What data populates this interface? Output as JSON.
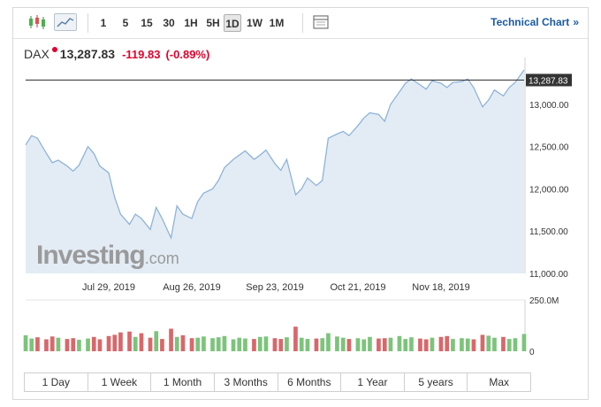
{
  "toolbar": {
    "timeframes": [
      "1",
      "5",
      "15",
      "30",
      "1H",
      "5H",
      "1D",
      "1W",
      "1M"
    ],
    "active_timeframe": "1D",
    "technical_chart_label": "Technical Chart",
    "technical_chart_arrow": "»"
  },
  "quote": {
    "symbol": "DAX",
    "price": "13,287.83",
    "change": "-119.83",
    "change_percent": "(-0.89%)",
    "negative_color": "#e4002b"
  },
  "watermark": {
    "brand": "Investing",
    "suffix": ".com"
  },
  "periods": [
    "1 Day",
    "1 Week",
    "1 Month",
    "3 Months",
    "6 Months",
    "1 Year",
    "5 years",
    "Max"
  ],
  "colors": {
    "line": "#8fb3d8",
    "fill": "#e3ecf5",
    "volume_up": "#7cc47b",
    "volume_down": "#d9676b",
    "marker_line": "#333333"
  },
  "chart_data": {
    "type": "area",
    "x": [
      "2019-07-01",
      "2019-07-03",
      "2019-07-05",
      "2019-07-08",
      "2019-07-10",
      "2019-07-12",
      "2019-07-15",
      "2019-07-17",
      "2019-07-19",
      "2019-07-22",
      "2019-07-24",
      "2019-07-26",
      "2019-07-29",
      "2019-07-31",
      "2019-08-02",
      "2019-08-05",
      "2019-08-07",
      "2019-08-09",
      "2019-08-12",
      "2019-08-14",
      "2019-08-16",
      "2019-08-19",
      "2019-08-21",
      "2019-08-23",
      "2019-08-26",
      "2019-08-28",
      "2019-08-30",
      "2019-09-02",
      "2019-09-04",
      "2019-09-06",
      "2019-09-09",
      "2019-09-11",
      "2019-09-13",
      "2019-09-16",
      "2019-09-18",
      "2019-09-20",
      "2019-09-23",
      "2019-09-25",
      "2019-09-27",
      "2019-09-30",
      "2019-10-02",
      "2019-10-04",
      "2019-10-07",
      "2019-10-09",
      "2019-10-11",
      "2019-10-14",
      "2019-10-16",
      "2019-10-18",
      "2019-10-21",
      "2019-10-23",
      "2019-10-25",
      "2019-10-28",
      "2019-10-30",
      "2019-11-01",
      "2019-11-04",
      "2019-11-06",
      "2019-11-08",
      "2019-11-11",
      "2019-11-13",
      "2019-11-15",
      "2019-11-18",
      "2019-11-20",
      "2019-11-22",
      "2019-11-25",
      "2019-11-27",
      "2019-11-29",
      "2019-12-02",
      "2019-12-04",
      "2019-12-06",
      "2019-12-09",
      "2019-12-11",
      "2019-12-13",
      "2019-12-16"
    ],
    "close": [
      12520,
      12630,
      12600,
      12420,
      12310,
      12340,
      12270,
      12210,
      12280,
      12500,
      12420,
      12270,
      12190,
      11900,
      11700,
      11580,
      11700,
      11650,
      11520,
      11780,
      11650,
      11420,
      11800,
      11700,
      11650,
      11850,
      11950,
      12000,
      12100,
      12250,
      12350,
      12400,
      12450,
      12350,
      12400,
      12460,
      12300,
      12220,
      12350,
      11930,
      12000,
      12130,
      12040,
      12100,
      12600,
      12650,
      12680,
      12630,
      12750,
      12840,
      12900,
      12880,
      12800,
      13000,
      13150,
      13250,
      13300,
      13230,
      13180,
      13280,
      13250,
      13200,
      13260,
      13270,
      13300,
      13200,
      12970,
      13050,
      13170,
      13100,
      13200,
      13260,
      13407
    ],
    "volume": [
      78,
      62,
      68,
      58,
      72,
      66,
      60,
      64,
      56,
      62,
      70,
      58,
      74,
      80,
      92,
      96,
      70,
      88,
      66,
      98,
      60,
      110,
      70,
      78,
      64,
      66,
      72,
      64,
      68,
      74,
      58,
      66,
      62,
      60,
      70,
      72,
      64,
      60,
      68,
      120,
      66,
      60,
      62,
      64,
      88,
      72,
      66,
      60,
      64,
      58,
      70,
      62,
      64,
      66,
      74,
      60,
      68,
      62,
      58,
      66,
      70,
      74,
      60,
      64,
      62,
      58,
      80,
      76,
      66,
      70,
      60,
      64,
      84
    ],
    "volume_up": [
      true,
      true,
      false,
      false,
      false,
      true,
      false,
      false,
      true,
      true,
      false,
      false,
      false,
      false,
      false,
      false,
      true,
      false,
      false,
      true,
      false,
      false,
      true,
      false,
      false,
      true,
      true,
      true,
      true,
      true,
      true,
      true,
      true,
      false,
      true,
      true,
      false,
      false,
      true,
      false,
      true,
      true,
      false,
      true,
      true,
      true,
      true,
      false,
      true,
      true,
      true,
      false,
      false,
      true,
      true,
      true,
      true,
      false,
      false,
      true,
      false,
      false,
      true,
      true,
      true,
      false,
      false,
      true,
      true,
      false,
      true,
      true,
      true
    ],
    "y_ticks": [
      "11,000.00",
      "11,500.00",
      "12,000.00",
      "12,500.00",
      "13,000.00"
    ],
    "y_tick_values": [
      11000,
      11500,
      12000,
      12500,
      13000
    ],
    "x_tick_labels": [
      "Jul 29, 2019",
      "Aug 26, 2019",
      "Sep 23, 2019",
      "Oct 21, 2019",
      "Nov 18, 2019"
    ],
    "x_tick_dates": [
      "2019-07-29",
      "2019-08-26",
      "2019-09-23",
      "2019-10-21",
      "2019-11-18"
    ],
    "current_marker": "13,287.83",
    "current_value": 13287.83,
    "volume_axis_labels": [
      "250.0M",
      "0"
    ],
    "volume_axis_values": [
      250,
      0
    ],
    "ylim": [
      11000,
      13450
    ],
    "grid": false
  }
}
